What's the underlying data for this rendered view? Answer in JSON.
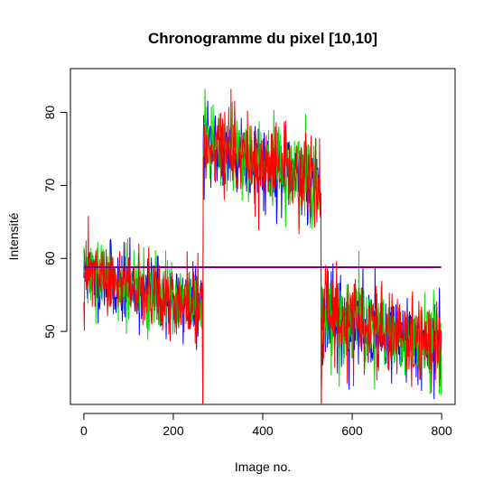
{
  "chart_data": {
    "type": "line",
    "title": "Chronogramme du pixel [10,10]",
    "xlabel": "Image no.",
    "ylabel": "Intensité",
    "xlim": [
      -30,
      830
    ],
    "ylim": [
      40,
      86
    ],
    "xticks": [
      "0",
      "200",
      "400",
      "600",
      "800"
    ],
    "yticks": [
      "50",
      "60",
      "70",
      "80"
    ],
    "grid": false,
    "legend": "none",
    "n_points": 800,
    "segments": [
      {
        "x_start": 0,
        "x_end": 265,
        "y_start": 58,
        "y_end": 53,
        "noise": 2.5
      },
      {
        "x_start": 266,
        "x_end": 530,
        "y_start": 76,
        "y_end": 70,
        "noise": 2.8
      },
      {
        "x_start": 531,
        "x_end": 800,
        "y_start": 52,
        "y_end": 48,
        "noise": 3.0
      }
    ],
    "dropouts": [
      266,
      531
    ],
    "series": [
      {
        "color": "#0000ff",
        "noise_seed": 11
      },
      {
        "color": "#00dd00",
        "noise_seed": 29
      },
      {
        "color": "#ff0000",
        "noise_seed": 47
      }
    ],
    "reference_line": {
      "y": 58.8,
      "color": "#800080"
    }
  }
}
